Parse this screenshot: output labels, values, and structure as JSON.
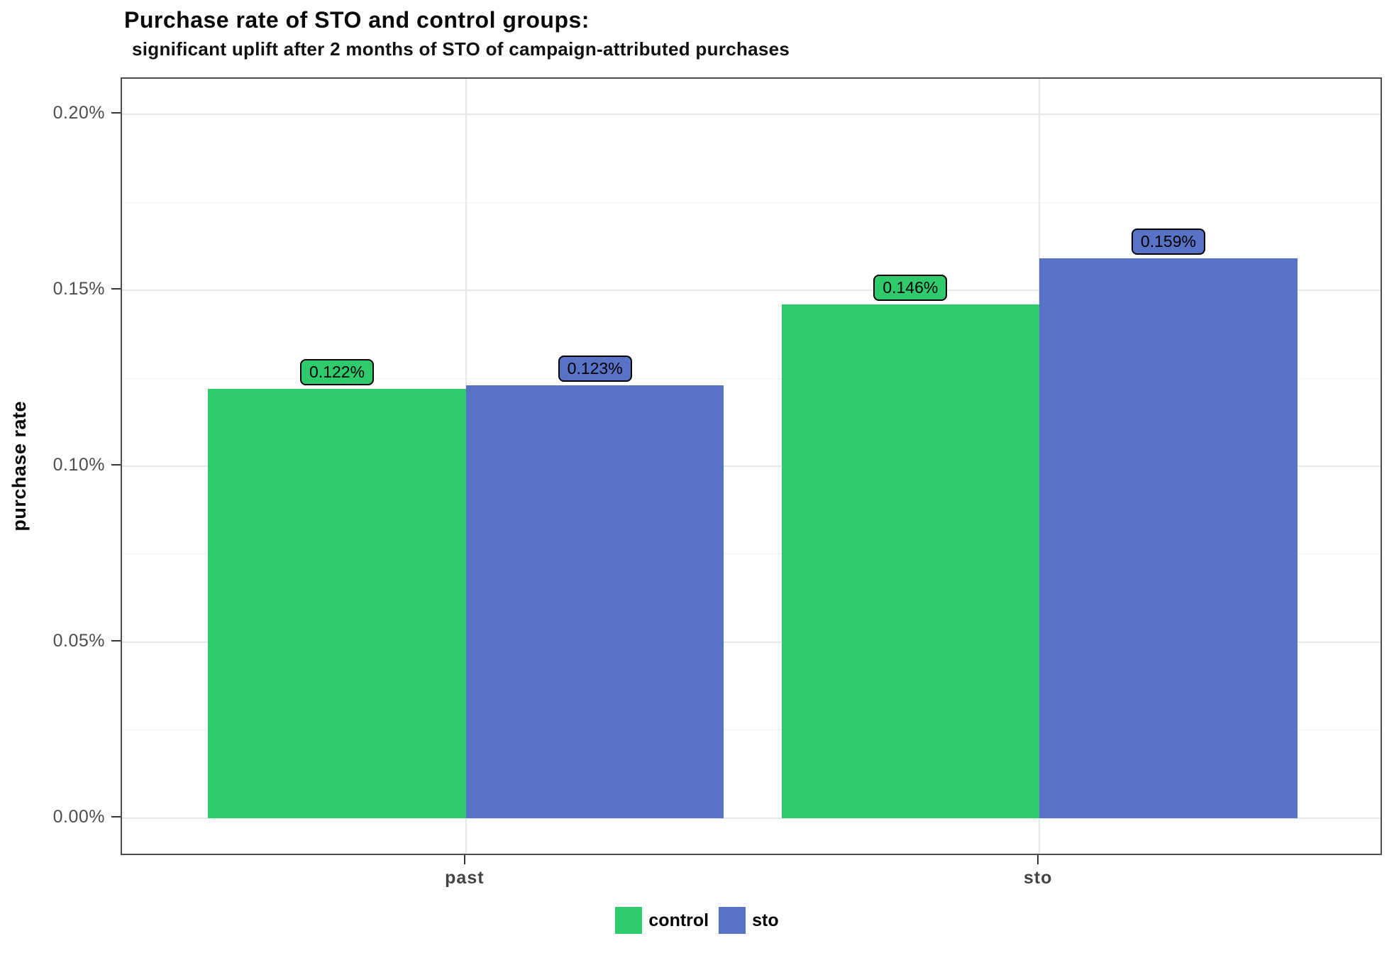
{
  "title": "Purchase rate of STO and control groups:",
  "subtitle": "significant uplift after 2 months of STO of campaign-attributed purchases",
  "chart_data": {
    "type": "bar",
    "categories": [
      "past",
      "sto"
    ],
    "series": [
      {
        "name": "control",
        "color": "#2fca6c",
        "values": [
          0.122,
          0.146
        ],
        "labels": [
          "0.122%",
          "0.146%"
        ]
      },
      {
        "name": "sto",
        "color": "#5872c6",
        "values": [
          0.123,
          0.159
        ],
        "labels": [
          "0.123%",
          "0.159%"
        ]
      }
    ],
    "xlabel": "",
    "ylabel": "purchase rate",
    "ylim": [
      0,
      0.21
    ],
    "y_ticks": [
      {
        "value": 0.0,
        "label": "0.00%"
      },
      {
        "value": 0.05,
        "label": "0.05%"
      },
      {
        "value": 0.1,
        "label": "0.10%"
      },
      {
        "value": 0.15,
        "label": "0.15%"
      },
      {
        "value": 0.2,
        "label": "0.20%"
      }
    ],
    "y_minor_ticks": [
      0.025,
      0.075,
      0.125,
      0.175
    ],
    "grid": true,
    "legend_position": "bottom",
    "legend": [
      {
        "label": "control",
        "color": "#2fca6c"
      },
      {
        "label": "sto",
        "color": "#5872c6"
      }
    ]
  }
}
